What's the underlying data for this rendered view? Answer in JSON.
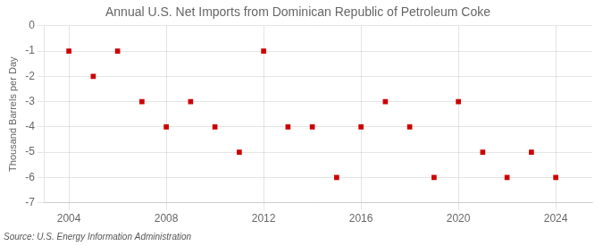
{
  "chart_data": {
    "type": "scatter",
    "title": "Annual U.S. Net Imports from Dominican Republic of Petroleum Coke",
    "ylabel": "Thousand Barrels per Day",
    "annotation": "Source: U.S. Energy Information Administration",
    "x": [
      2004,
      2005,
      2006,
      2007,
      2008,
      2009,
      2010,
      2011,
      2012,
      2013,
      2014,
      2015,
      2016,
      2017,
      2018,
      2019,
      2020,
      2021,
      2022,
      2023,
      2024
    ],
    "values": [
      -1,
      -2,
      -1,
      -3,
      -4,
      -3,
      -4,
      -5,
      -1,
      -4,
      -4,
      -6,
      -4,
      -3,
      -4,
      -6,
      -3,
      -5,
      -6,
      -5,
      -6
    ],
    "color": "#cc0000",
    "marker": "square",
    "xlim": [
      2003.0,
      2025.5
    ],
    "xticks": [
      2004,
      2008,
      2012,
      2016,
      2020,
      2024
    ],
    "ylim": [
      -7,
      0
    ],
    "yticks": [
      0,
      -1,
      -2,
      -3,
      -4,
      -5,
      -6,
      -7
    ],
    "grid": true
  }
}
